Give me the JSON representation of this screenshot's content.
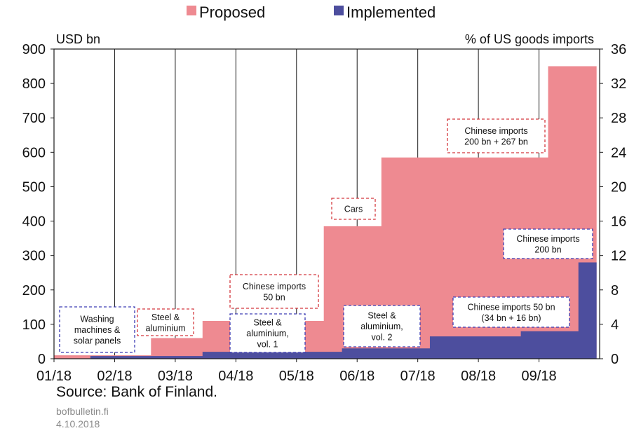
{
  "chart_data": {
    "type": "area",
    "legend": {
      "placement": "top-center",
      "entries": [
        "Proposed",
        "Implemented"
      ]
    },
    "colors": {
      "Proposed": "#ee8a91",
      "Implemented": "#4d4e9e",
      "proposed_box": "#d4383e",
      "implemented_box": "#3c3cb4"
    },
    "y_left_label": "USD bn",
    "y_right_label": "% of US goods imports",
    "ylim_left": [
      0,
      900
    ],
    "ylim_right": [
      0,
      36
    ],
    "y_left_ticks": [
      0,
      100,
      200,
      300,
      400,
      500,
      600,
      700,
      800,
      900
    ],
    "y_right_ticks": [
      0,
      4,
      8,
      12,
      16,
      20,
      24,
      28,
      32,
      36
    ],
    "y_left_tick_labels": [
      "0",
      "100",
      "200",
      "300",
      "400",
      "500",
      "600",
      "700",
      "800",
      "900"
    ],
    "y_right_tick_labels": [
      "0",
      "4",
      "8",
      "12",
      "16",
      "20",
      "24",
      "28",
      "32",
      "36"
    ],
    "x_tick_labels": [
      "01/18",
      "02/18",
      "03/18",
      "04/18",
      "05/18",
      "06/18",
      "07/18",
      "08/18",
      "09/18"
    ],
    "x_range_months": [
      0,
      9
    ],
    "grid": true,
    "series": [
      {
        "name": "Proposed",
        "steps": [
          {
            "from": 0.0,
            "to": 1.1,
            "value": 10
          },
          {
            "from": 1.1,
            "to": 1.6,
            "value": 10
          },
          {
            "from": 1.6,
            "to": 2.45,
            "value": 60
          },
          {
            "from": 2.45,
            "to": 4.45,
            "value": 110
          },
          {
            "from": 4.45,
            "to": 5.4,
            "value": 385
          },
          {
            "from": 5.4,
            "to": 8.15,
            "value": 585
          },
          {
            "from": 8.15,
            "to": 8.95,
            "value": 850
          }
        ]
      },
      {
        "name": "Implemented",
        "steps": [
          {
            "from": 0.0,
            "to": 0.6,
            "value": 0
          },
          {
            "from": 0.6,
            "to": 2.45,
            "value": 8
          },
          {
            "from": 2.45,
            "to": 4.75,
            "value": 20
          },
          {
            "from": 4.75,
            "to": 6.2,
            "value": 30
          },
          {
            "from": 6.2,
            "to": 7.7,
            "value": 65
          },
          {
            "from": 7.7,
            "to": 8.65,
            "value": 80
          },
          {
            "from": 8.65,
            "to": 8.95,
            "value": 280
          }
        ]
      }
    ],
    "annotations": [
      {
        "name": "annotation-washing-machines",
        "series": "Implemented",
        "lines": [
          "Washing",
          "machines &",
          "solar panels"
        ]
      },
      {
        "name": "annotation-steel-aluminium-proposed",
        "series": "Proposed",
        "lines": [
          "Steel &",
          "aluminium"
        ]
      },
      {
        "name": "annotation-steel-aluminium-vol1",
        "series": "Implemented",
        "lines": [
          "Steel &",
          "aluminium,",
          "vol. 1"
        ]
      },
      {
        "name": "annotation-chinese-50bn-proposed",
        "series": "Proposed",
        "lines": [
          "Chinese imports",
          "50 bn"
        ]
      },
      {
        "name": "annotation-cars",
        "series": "Proposed",
        "lines": [
          "Cars"
        ]
      },
      {
        "name": "annotation-steel-aluminium-vol2",
        "series": "Implemented",
        "lines": [
          "Steel &",
          "aluminium,",
          "vol. 2"
        ]
      },
      {
        "name": "annotation-chinese-200-267bn",
        "series": "Proposed",
        "lines": [
          "Chinese imports",
          "200 bn + 267 bn"
        ]
      },
      {
        "name": "annotation-chinese-200bn-implemented",
        "series": "Implemented",
        "lines": [
          "Chinese imports",
          "200 bn"
        ]
      },
      {
        "name": "annotation-chinese-50bn-implemented",
        "series": "Implemented",
        "lines": [
          "Chinese imports 50 bn",
          "(34 bn + 16 bn)"
        ]
      }
    ]
  },
  "footer": {
    "source": "Source: Bank of Finland.",
    "site": "bofbulletin.fi",
    "date": "4.10.2018"
  }
}
